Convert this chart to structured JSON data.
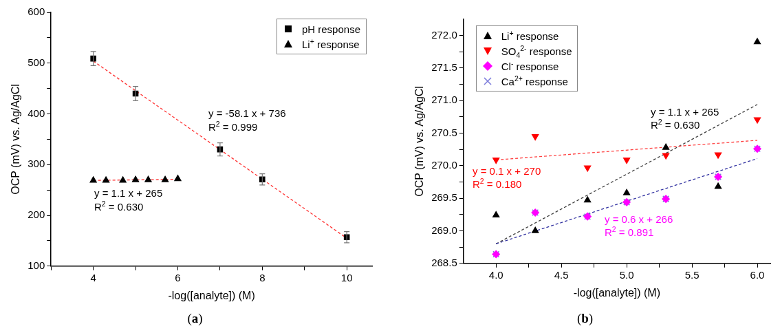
{
  "chart_data": [
    {
      "type": "scatter",
      "xlabel": "-log([analyte]) (M)",
      "ylabel": "OCP (mV) vs. Ag/AgCl",
      "xlim": [
        3,
        10.6
      ],
      "ylim": [
        100,
        600
      ],
      "xticks": [
        {
          "value": 3,
          "label": null
        },
        4,
        {
          "value": 5,
          "label": null
        },
        6,
        {
          "value": 7,
          "label": null
        },
        8,
        {
          "value": 9,
          "label": null
        },
        10
      ],
      "yticks": [
        100,
        {
          "value": 150,
          "label": null
        },
        200,
        {
          "value": 250,
          "label": null
        },
        300,
        {
          "value": 350,
          "label": null
        },
        400,
        {
          "value": 450,
          "label": null
        },
        500,
        {
          "value": 550,
          "label": null
        },
        600
      ],
      "grid": false,
      "legend": "top right",
      "series": [
        {
          "name": "pH response",
          "type": "scatter",
          "marker": "square",
          "color": "#000000",
          "x": [
            4,
            5,
            7,
            8,
            10
          ],
          "values": [
            509,
            440,
            330,
            271,
            157
          ],
          "errors": [
            14,
            14,
            13,
            11,
            11
          ]
        },
        {
          "name": "Li$^{+}$ response",
          "type": "scatter",
          "marker": "triangle",
          "color": "#000000",
          "x": [
            4,
            4.3,
            4.7,
            5,
            5.3,
            5.7,
            6
          ],
          "values": [
            269,
            269,
            269,
            270,
            270,
            270,
            272
          ]
        },
        {
          "type": "line",
          "marker": "none",
          "line_style": "dashed",
          "color": "#ff3333",
          "x": [
            4,
            10
          ],
          "values": [
            504,
            155
          ]
        },
        {
          "type": "line",
          "marker": "none",
          "line_style": "dashed",
          "color": "#ff3333",
          "x": [
            4,
            6
          ],
          "values": [
            269,
            271
          ]
        }
      ],
      "annotations": [
        "y = -58.1 x + 736",
        "R$^{2}$ = 0.999",
        "y = 1.1 x + 265",
        "R$^{2}$ = 0.630",
        "(a)"
      ]
    },
    {
      "type": "scatter",
      "xlabel": "-log([analyte]) (M)",
      "ylabel": "OCP (mV) vs. Ag/AgCl",
      "xlim": [
        3.75,
        6.1
      ],
      "ylim": [
        268.5,
        272.25
      ],
      "xticks": [
        {
          "value": 4,
          "label": "4.0"
        },
        {
          "value": 4.25,
          "label": null
        },
        {
          "value": 4.5,
          "label": "4.5"
        },
        {
          "value": 4.75,
          "label": null
        },
        {
          "value": 5,
          "label": "5.0"
        },
        {
          "value": 5.25,
          "label": null
        },
        {
          "value": 5.5,
          "label": "5.5"
        },
        {
          "value": 5.75,
          "label": null
        },
        {
          "value": 6,
          "label": "6.0"
        }
      ],
      "yticks": [
        {
          "value": 268.5,
          "label": "268.5"
        },
        {
          "value": 268.75,
          "label": null
        },
        {
          "value": 269,
          "label": "269.0"
        },
        {
          "value": 269.25,
          "label": null
        },
        {
          "value": 269.5,
          "label": "269.5"
        },
        {
          "value": 269.75,
          "label": null
        },
        {
          "value": 270,
          "label": "270.0"
        },
        {
          "value": 270.25,
          "label": null
        },
        {
          "value": 270.5,
          "label": "270.5"
        },
        {
          "value": 270.75,
          "label": null
        },
        {
          "value": 271,
          "label": "271.0"
        },
        {
          "value": 271.25,
          "label": null
        },
        {
          "value": 271.5,
          "label": "271.5"
        },
        {
          "value": 271.75,
          "label": null
        },
        {
          "value": 272,
          "label": "272.0"
        }
      ],
      "grid": false,
      "legend": "top left",
      "x": [
        4,
        4.3,
        4.7,
        5,
        5.3,
        5.7,
        6
      ],
      "series": [
        {
          "name": "Li$^{+}$ response",
          "type": "scatter",
          "marker": "triangle",
          "color": "#000000",
          "values": [
            269.24,
            269.0,
            269.47,
            269.58,
            270.28,
            269.68,
            271.9
          ]
        },
        {
          "name": "SO$_{4}$$^{2-}$ response",
          "type": "scatter",
          "marker": "triangle-down",
          "color": "#ff0000",
          "values": [
            270.09,
            270.45,
            269.97,
            270.09,
            270.16,
            270.17,
            270.71
          ]
        },
        {
          "name": "Cl$^{-}$ response",
          "type": "scatter",
          "marker": "diamond",
          "color": "#ff00ff",
          "values": [
            268.64,
            269.28,
            269.22,
            269.44,
            269.49,
            269.83,
            270.26
          ]
        },
        {
          "name": "Ca$^{2+}$ response",
          "type": "scatter",
          "marker": "cross",
          "color": "#7b7bdb",
          "values": [
            268.64,
            269.28,
            269.22,
            269.44,
            269.49,
            269.83,
            270.26
          ]
        },
        {
          "type": "line",
          "marker": "none",
          "line_style": "dashed",
          "color": "#404040",
          "x": [
            4,
            6
          ],
          "values": [
            268.8,
            270.94
          ]
        },
        {
          "type": "line",
          "marker": "none",
          "line_style": "dashed",
          "color": "#ff4040",
          "x": [
            4,
            6
          ],
          "values": [
            270.09,
            270.39
          ]
        },
        {
          "type": "line",
          "marker": "none",
          "line_style": "dashed",
          "color": "#3030a0",
          "x": [
            4,
            6
          ],
          "values": [
            268.8,
            270.11
          ]
        }
      ],
      "annotations": [
        "y = 1.1 x + 265",
        "R$^{2}$ = 0.630",
        "y = 0.1 x + 270",
        "R$^{2}$ = 0.180",
        "y = 0.6 x + 266",
        "R$^{2}$ = 0.891",
        "(b)"
      ]
    }
  ]
}
